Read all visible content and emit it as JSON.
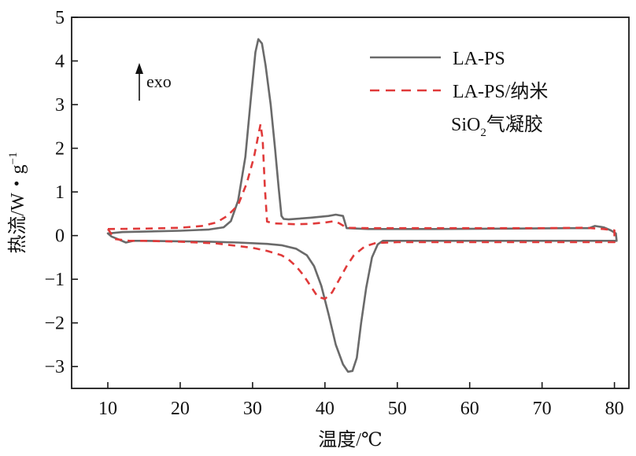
{
  "chart_data": {
    "type": "line",
    "title": "",
    "xlabel": "温度/℃",
    "ylabel": "热流/W・g",
    "ylabel_sup": "−1",
    "xlim": [
      5,
      82
    ],
    "ylim": [
      -3.5,
      5
    ],
    "xticks": [
      10,
      20,
      30,
      40,
      50,
      60,
      70,
      80
    ],
    "yticks": [
      5,
      4,
      3,
      2,
      1,
      0,
      -1,
      -2,
      -3
    ],
    "ytick_labels": [
      "5",
      "4",
      "3",
      "2",
      "1",
      "0",
      "−1",
      "−2",
      "−3"
    ],
    "annotation": {
      "text": "exo",
      "direction": "up"
    },
    "legend_position": "top-right",
    "series": [
      {
        "name": "LA-PS",
        "color": "#6a6a6a",
        "style": "solid",
        "points": [
          [
            10,
            0.05
          ],
          [
            12,
            0.08
          ],
          [
            15,
            0.09
          ],
          [
            20,
            0.11
          ],
          [
            24,
            0.14
          ],
          [
            26,
            0.19
          ],
          [
            27,
            0.33
          ],
          [
            28,
            0.8
          ],
          [
            29,
            1.8
          ],
          [
            29.8,
            3.2
          ],
          [
            30.4,
            4.2
          ],
          [
            30.8,
            4.5
          ],
          [
            31.3,
            4.4
          ],
          [
            31.8,
            3.9
          ],
          [
            32.5,
            3.0
          ],
          [
            33.1,
            2.0
          ],
          [
            33.6,
            1.1
          ],
          [
            34.0,
            0.45
          ],
          [
            34.3,
            0.38
          ],
          [
            35,
            0.37
          ],
          [
            38,
            0.41
          ],
          [
            40.5,
            0.45
          ],
          [
            41.5,
            0.48
          ],
          [
            42.5,
            0.45
          ],
          [
            43,
            0.17
          ],
          [
            46,
            0.15
          ],
          [
            55,
            0.15
          ],
          [
            65,
            0.16
          ],
          [
            74,
            0.17
          ],
          [
            76.5,
            0.17
          ],
          [
            77.3,
            0.22
          ],
          [
            78.5,
            0.19
          ],
          [
            79.5,
            0.12
          ],
          [
            80.2,
            0.05
          ],
          [
            80.3,
            -0.12
          ],
          [
            75,
            -0.12
          ],
          [
            60,
            -0.12
          ],
          [
            50,
            -0.12
          ],
          [
            48,
            -0.12
          ],
          [
            47.3,
            -0.2
          ],
          [
            46.5,
            -0.5
          ],
          [
            45.7,
            -1.2
          ],
          [
            45,
            -2.0
          ],
          [
            44.4,
            -2.8
          ],
          [
            43.8,
            -3.1
          ],
          [
            43.2,
            -3.12
          ],
          [
            42.5,
            -2.95
          ],
          [
            41.5,
            -2.5
          ],
          [
            40.5,
            -1.8
          ],
          [
            39.5,
            -1.15
          ],
          [
            38.5,
            -0.7
          ],
          [
            37.5,
            -0.45
          ],
          [
            36,
            -0.3
          ],
          [
            34,
            -0.22
          ],
          [
            32,
            -0.19
          ],
          [
            28,
            -0.16
          ],
          [
            24,
            -0.14
          ],
          [
            20,
            -0.13
          ],
          [
            15,
            -0.12
          ],
          [
            13.5,
            -0.12
          ],
          [
            12.5,
            -0.16
          ],
          [
            11.5,
            -0.09
          ],
          [
            10.5,
            -0.02
          ],
          [
            10,
            0.05
          ]
        ]
      },
      {
        "name": "LA-PS/纳米SiO₂气凝胶",
        "legend_line1": "LA-PS/纳米",
        "legend_line2_main": "SiO",
        "legend_line2_sub": "2",
        "legend_line2_rest": "气凝胶",
        "color": "#e03a3a",
        "style": "dashed",
        "points": [
          [
            10,
            0.15
          ],
          [
            15,
            0.16
          ],
          [
            20,
            0.18
          ],
          [
            23,
            0.22
          ],
          [
            25,
            0.3
          ],
          [
            26.5,
            0.45
          ],
          [
            28,
            0.7
          ],
          [
            29.2,
            1.2
          ],
          [
            30.2,
            1.8
          ],
          [
            30.8,
            2.3
          ],
          [
            31.1,
            2.55
          ],
          [
            31.4,
            2.2
          ],
          [
            31.7,
            1.1
          ],
          [
            32,
            0.32
          ],
          [
            33,
            0.28
          ],
          [
            36,
            0.26
          ],
          [
            38,
            0.27
          ],
          [
            40,
            0.3
          ],
          [
            41.3,
            0.33
          ],
          [
            42,
            0.28
          ],
          [
            43,
            0.18
          ],
          [
            46,
            0.17
          ],
          [
            55,
            0.17
          ],
          [
            65,
            0.17
          ],
          [
            70,
            0.17
          ],
          [
            76,
            0.18
          ],
          [
            78.5,
            0.15
          ],
          [
            80,
            0.12
          ],
          [
            80,
            -0.15
          ],
          [
            70,
            -0.15
          ],
          [
            60,
            -0.15
          ],
          [
            50,
            -0.15
          ],
          [
            47,
            -0.17
          ],
          [
            45.5,
            -0.25
          ],
          [
            44,
            -0.45
          ],
          [
            43,
            -0.7
          ],
          [
            42,
            -1.0
          ],
          [
            41,
            -1.3
          ],
          [
            40,
            -1.45
          ],
          [
            39,
            -1.4
          ],
          [
            38,
            -1.15
          ],
          [
            37,
            -0.9
          ],
          [
            36,
            -0.7
          ],
          [
            35,
            -0.55
          ],
          [
            34,
            -0.45
          ],
          [
            32,
            -0.35
          ],
          [
            30,
            -0.28
          ],
          [
            25,
            -0.18
          ],
          [
            20,
            -0.14
          ],
          [
            15,
            -0.12
          ],
          [
            13,
            -0.12
          ],
          [
            11,
            -0.08
          ],
          [
            10,
            0.15
          ]
        ]
      }
    ]
  }
}
